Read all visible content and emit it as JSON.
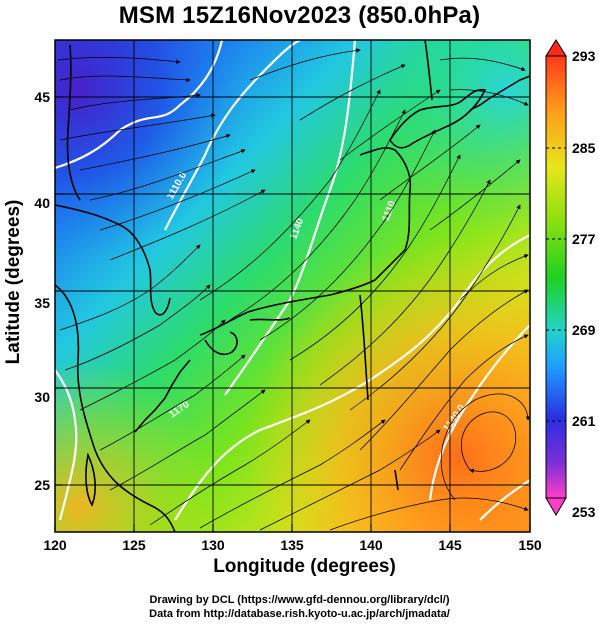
{
  "title": "MSM 15Z16Nov2023 (850.0hPa)",
  "axes": {
    "xlabel": "Longitude (degrees)",
    "ylabel": "Latitude  (degrees)",
    "x_ticks": [
      "120",
      "125",
      "130",
      "135",
      "140",
      "145",
      "150"
    ],
    "y_ticks": [
      "25",
      "30",
      "35",
      "40",
      "45"
    ],
    "x_range": [
      120,
      150
    ],
    "y_range": [
      22.4,
      47.6
    ]
  },
  "colorbar": {
    "labels": [
      "293",
      "285",
      "277",
      "269",
      "261",
      "253"
    ],
    "range": [
      253,
      293
    ],
    "colors": [
      "#ff3fc8",
      "#7b2fd6",
      "#2a2fe0",
      "#1e8cff",
      "#22d4e8",
      "#22e08a",
      "#20d020",
      "#8ee010",
      "#e6e61a",
      "#ff9a1a",
      "#ff4a1a"
    ]
  },
  "contour_labels": [
    "1110.0",
    "1140",
    "1110",
    "1170",
    "1140.0"
  ],
  "credits": [
    "Drawing by DCL (https://www.gfd-dennou.org/library/dcl/)",
    "Data from http://database.rish.kyoto-u.ac.jp/arch/jmadata/"
  ]
}
